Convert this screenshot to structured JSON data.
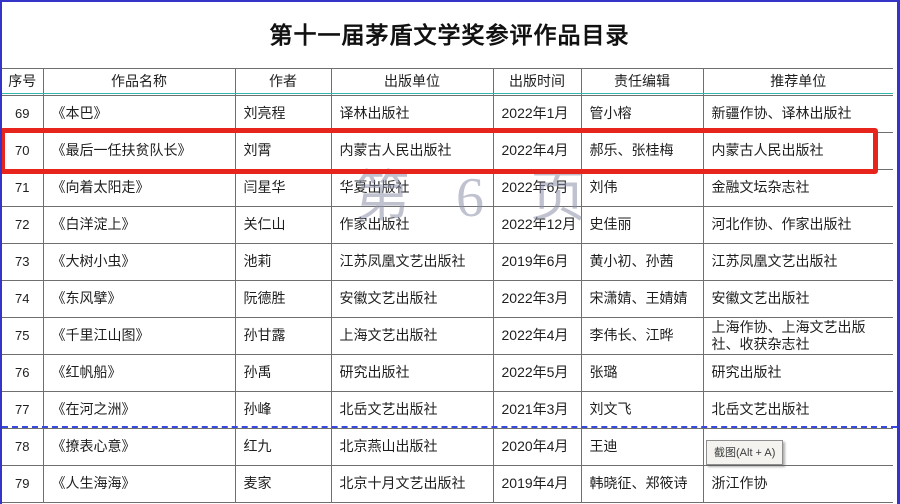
{
  "page": {
    "title": "第十一届茅盾文学奖参评作品目录"
  },
  "table": {
    "columns": [
      "序号",
      "作品名称",
      "作者",
      "出版单位",
      "出版时间",
      "责任编辑",
      "推荐单位"
    ],
    "rows": [
      {
        "no": "69",
        "title": "《本巴》",
        "author": "刘亮程",
        "publisher": "译林出版社",
        "pub_date": "2022年1月",
        "editor": "管小榕",
        "recommender": "新疆作协、译林出版社",
        "highlighted": false
      },
      {
        "no": "70",
        "title": "《最后一任扶贫队长》",
        "author": "刘霄",
        "publisher": "内蒙古人民出版社",
        "pub_date": "2022年4月",
        "editor": "郝乐、张桂梅",
        "recommender": "内蒙古人民出版社",
        "highlighted": true
      },
      {
        "no": "71",
        "title": "《向着太阳走》",
        "author": "闫星华",
        "publisher": "华夏出版社",
        "pub_date": "2022年6月",
        "editor": "刘伟",
        "recommender": "金融文坛杂志社",
        "highlighted": false
      },
      {
        "no": "72",
        "title": "《白洋淀上》",
        "author": "关仁山",
        "publisher": "作家出版社",
        "pub_date": "2022年12月",
        "editor": "史佳丽",
        "recommender": "河北作协、作家出版社",
        "highlighted": false
      },
      {
        "no": "73",
        "title": "《大树小虫》",
        "author": "池莉",
        "publisher": "江苏凤凰文艺出版社",
        "pub_date": "2019年6月",
        "editor": "黄小初、孙茜",
        "recommender": "江苏凤凰文艺出版社",
        "highlighted": false
      },
      {
        "no": "74",
        "title": "《东风擘》",
        "author": "阮德胜",
        "publisher": "安徽文艺出版社",
        "pub_date": "2022年3月",
        "editor": "宋潇婧、王婧婧",
        "recommender": "安徽文艺出版社",
        "highlighted": false
      },
      {
        "no": "75",
        "title": "《千里江山图》",
        "author": "孙甘露",
        "publisher": "上海文艺出版社",
        "pub_date": "2022年4月",
        "editor": "李伟长、江晔",
        "recommender": "上海作协、上海文艺出版社、收获杂志社",
        "highlighted": false
      },
      {
        "no": "76",
        "title": "《红帆船》",
        "author": "孙禹",
        "publisher": "研究出版社",
        "pub_date": "2022年5月",
        "editor": "张璐",
        "recommender": "研究出版社",
        "highlighted": false
      },
      {
        "no": "77",
        "title": "《在河之洲》",
        "author": "孙峰",
        "publisher": "北岳文艺出版社",
        "pub_date": "2021年3月",
        "editor": "刘文飞",
        "recommender": "北岳文艺出版社",
        "highlighted": false
      },
      {
        "no": "78",
        "title": "《撩表心意》",
        "author": "红九",
        "publisher": "北京燕山出版社",
        "pub_date": "2020年4月",
        "editor": "王迪",
        "recommender": "",
        "highlighted": false
      },
      {
        "no": "79",
        "title": "《人生海海》",
        "author": "麦家",
        "publisher": "北京十月文艺出版社",
        "pub_date": "2019年4月",
        "editor": "韩晓征、郑筱诗",
        "recommender": "浙江作协",
        "highlighted": false
      }
    ]
  },
  "watermark": {
    "text": "第 6 页"
  },
  "tooltip": {
    "text": "截图(Alt + A)"
  },
  "colors": {
    "page_border_blue": "#3434c8",
    "highlight_red": "#e8251c",
    "header_underline_teal": "#35b3ad",
    "page_break_dash_blue": "#3a4ae0",
    "watermark_gray": "#8d93a8",
    "gridline_gray": "#6f6f6f"
  }
}
